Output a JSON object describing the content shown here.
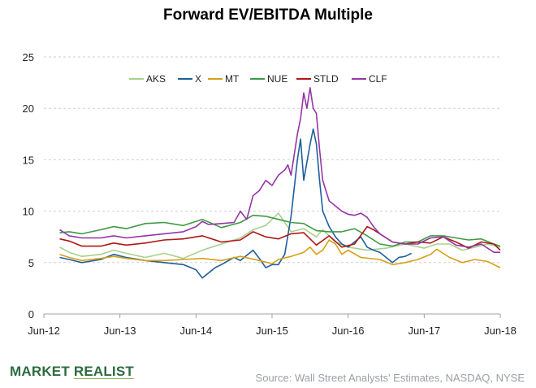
{
  "chart_data": {
    "type": "line",
    "title": "Forward EV/EBITDA Multiple",
    "xlabel": "",
    "ylabel": "",
    "ylim": [
      0,
      25
    ],
    "y_ticks": [
      "0",
      "5",
      "10",
      "15",
      "20",
      "25"
    ],
    "x_ticks": [
      "Jun-12",
      "Jun-13",
      "Jun-14",
      "Jun-15",
      "Jun-16",
      "Jun-17",
      "Jun-18"
    ],
    "grid": "horizontal dashed",
    "legend_position": "top",
    "x_unit": "months since Jun-12",
    "series": [
      {
        "name": "AKS",
        "color": "#a8d08d",
        "points": [
          [
            2.5,
            6.5
          ],
          [
            4,
            6
          ],
          [
            6,
            5.6
          ],
          [
            9,
            5.8
          ],
          [
            11,
            6.2
          ],
          [
            13,
            5.9
          ],
          [
            16,
            5.5
          ],
          [
            19,
            5.9
          ],
          [
            22,
            5.4
          ],
          [
            25,
            6.2
          ],
          [
            28,
            6.8
          ],
          [
            31,
            7.4
          ],
          [
            33,
            8.2
          ],
          [
            35,
            8.6
          ],
          [
            37,
            9.8
          ],
          [
            39,
            8.0
          ],
          [
            41,
            8.3
          ],
          [
            43,
            7.5
          ],
          [
            44,
            8.2
          ],
          [
            46,
            7.0
          ],
          [
            48,
            6.5
          ],
          [
            51,
            6.2
          ],
          [
            54,
            6.4
          ],
          [
            57,
            6.8
          ],
          [
            60,
            6.4
          ],
          [
            62,
            6.8
          ],
          [
            64,
            6.8
          ],
          [
            66,
            6.2
          ],
          [
            68,
            6.5
          ],
          [
            70,
            6.8
          ],
          [
            72,
            6.5
          ]
        ]
      },
      {
        "name": "X",
        "color": "#1f5f9b",
        "points": [
          [
            2.5,
            5.5
          ],
          [
            4,
            5.3
          ],
          [
            6,
            5.0
          ],
          [
            9,
            5.3
          ],
          [
            11,
            5.8
          ],
          [
            13,
            5.5
          ],
          [
            16,
            5.2
          ],
          [
            19,
            5.0
          ],
          [
            22,
            4.8
          ],
          [
            24,
            4.3
          ],
          [
            25,
            3.5
          ],
          [
            27,
            4.5
          ],
          [
            28,
            4.8
          ],
          [
            30,
            5.5
          ],
          [
            31,
            5.2
          ],
          [
            33,
            6.2
          ],
          [
            34,
            5.4
          ],
          [
            35,
            4.5
          ],
          [
            36,
            4.8
          ],
          [
            37,
            4.8
          ],
          [
            38,
            5.8
          ],
          [
            39,
            9.5
          ],
          [
            40,
            15.0
          ],
          [
            40.5,
            17.0
          ],
          [
            41,
            13.0
          ],
          [
            42,
            16.5
          ],
          [
            42.5,
            18.0
          ],
          [
            43,
            16.5
          ],
          [
            43.5,
            13.0
          ],
          [
            44,
            10.0
          ],
          [
            45,
            8.5
          ],
          [
            46,
            7.5
          ],
          [
            47,
            6.8
          ],
          [
            48,
            6.5
          ],
          [
            49,
            7.0
          ],
          [
            50,
            7.5
          ],
          [
            51,
            6.5
          ],
          [
            52,
            6.2
          ],
          [
            53,
            6.0
          ],
          [
            54,
            5.5
          ],
          [
            55,
            5.0
          ],
          [
            56,
            5.5
          ],
          [
            57,
            5.6
          ],
          [
            58,
            5.9
          ]
        ]
      },
      {
        "name": "MT",
        "color": "#d4a017",
        "points": [
          [
            2.5,
            5.8
          ],
          [
            4,
            5.5
          ],
          [
            6,
            5.2
          ],
          [
            9,
            5.4
          ],
          [
            11,
            5.6
          ],
          [
            13,
            5.4
          ],
          [
            16,
            5.2
          ],
          [
            19,
            5.2
          ],
          [
            22,
            5.3
          ],
          [
            25,
            5.4
          ],
          [
            28,
            5.2
          ],
          [
            31,
            5.6
          ],
          [
            34,
            5.2
          ],
          [
            36,
            4.9
          ],
          [
            37,
            5.3
          ],
          [
            39,
            5.6
          ],
          [
            41,
            6.0
          ],
          [
            42,
            6.5
          ],
          [
            43,
            5.8
          ],
          [
            44,
            6.2
          ],
          [
            45,
            7.2
          ],
          [
            46,
            6.8
          ],
          [
            47,
            5.8
          ],
          [
            48,
            6.2
          ],
          [
            50,
            5.5
          ],
          [
            53,
            5.3
          ],
          [
            55,
            4.8
          ],
          [
            57,
            5.0
          ],
          [
            59,
            5.3
          ],
          [
            61,
            5.8
          ],
          [
            62,
            6.3
          ],
          [
            64,
            5.5
          ],
          [
            66,
            5.0
          ],
          [
            68,
            5.3
          ],
          [
            70,
            5.1
          ],
          [
            71,
            4.8
          ],
          [
            72,
            4.5
          ]
        ]
      },
      {
        "name": "NUE",
        "color": "#3f9a45",
        "points": [
          [
            2.5,
            7.9
          ],
          [
            4,
            8.0
          ],
          [
            6,
            7.8
          ],
          [
            9,
            8.2
          ],
          [
            11,
            8.5
          ],
          [
            13,
            8.3
          ],
          [
            16,
            8.8
          ],
          [
            19,
            8.9
          ],
          [
            22,
            8.6
          ],
          [
            25,
            9.2
          ],
          [
            28,
            8.4
          ],
          [
            31,
            8.9
          ],
          [
            33,
            9.6
          ],
          [
            35,
            9.5
          ],
          [
            37,
            9.2
          ],
          [
            39,
            8.9
          ],
          [
            41,
            8.8
          ],
          [
            43,
            8.1
          ],
          [
            45,
            8.0
          ],
          [
            47,
            8.0
          ],
          [
            49,
            8.3
          ],
          [
            51,
            7.6
          ],
          [
            53,
            6.8
          ],
          [
            55,
            6.6
          ],
          [
            57,
            7.0
          ],
          [
            59,
            7.0
          ],
          [
            61,
            7.6
          ],
          [
            63,
            7.6
          ],
          [
            65,
            7.4
          ],
          [
            67,
            7.2
          ],
          [
            69,
            7.3
          ],
          [
            71,
            6.8
          ],
          [
            72,
            6.6
          ]
        ]
      },
      {
        "name": "STLD",
        "color": "#b01717",
        "points": [
          [
            2.5,
            7.3
          ],
          [
            4,
            7.1
          ],
          [
            6,
            6.6
          ],
          [
            9,
            6.6
          ],
          [
            11,
            6.9
          ],
          [
            13,
            6.7
          ],
          [
            16,
            6.9
          ],
          [
            19,
            7.2
          ],
          [
            22,
            7.3
          ],
          [
            25,
            7.6
          ],
          [
            28,
            7.0
          ],
          [
            31,
            7.2
          ],
          [
            33,
            8.0
          ],
          [
            35,
            7.5
          ],
          [
            37,
            7.3
          ],
          [
            39,
            7.8
          ],
          [
            41,
            7.9
          ],
          [
            43,
            6.7
          ],
          [
            45,
            7.6
          ],
          [
            47,
            6.5
          ],
          [
            49,
            6.8
          ],
          [
            51,
            8.5
          ],
          [
            52,
            8.2
          ],
          [
            53,
            7.8
          ],
          [
            55,
            7.0
          ],
          [
            57,
            6.8
          ],
          [
            59,
            7.0
          ],
          [
            61,
            6.9
          ],
          [
            63,
            7.5
          ],
          [
            65,
            7.0
          ],
          [
            67,
            6.4
          ],
          [
            69,
            7.0
          ],
          [
            71,
            6.8
          ],
          [
            72,
            6.2
          ]
        ]
      },
      {
        "name": "CLF",
        "color": "#9437a5",
        "points": [
          [
            2.5,
            8.2
          ],
          [
            4,
            7.6
          ],
          [
            6,
            7.4
          ],
          [
            9,
            7.4
          ],
          [
            11,
            7.6
          ],
          [
            13,
            7.4
          ],
          [
            16,
            7.6
          ],
          [
            19,
            7.8
          ],
          [
            22,
            8.0
          ],
          [
            24,
            8.5
          ],
          [
            25,
            9.0
          ],
          [
            26,
            8.7
          ],
          [
            28,
            8.8
          ],
          [
            30,
            8.9
          ],
          [
            31,
            10.0
          ],
          [
            32,
            9.2
          ],
          [
            33,
            11.5
          ],
          [
            34,
            12.0
          ],
          [
            35,
            13.0
          ],
          [
            36,
            12.5
          ],
          [
            37,
            13.5
          ],
          [
            38,
            14.0
          ],
          [
            38.5,
            14.5
          ],
          [
            39,
            13.5
          ],
          [
            40,
            17.5
          ],
          [
            40.5,
            19.0
          ],
          [
            41,
            21.5
          ],
          [
            41.5,
            20.0
          ],
          [
            42,
            22.0
          ],
          [
            42.5,
            20.0
          ],
          [
            43,
            19.5
          ],
          [
            43.5,
            16.0
          ],
          [
            44,
            13.0
          ],
          [
            45,
            11.0
          ],
          [
            46,
            10.5
          ],
          [
            47,
            10.0
          ],
          [
            48,
            9.7
          ],
          [
            49,
            9.6
          ],
          [
            50,
            9.8
          ],
          [
            51,
            9.4
          ],
          [
            52,
            8.5
          ],
          [
            53,
            7.8
          ],
          [
            55,
            7.0
          ],
          [
            57,
            6.8
          ],
          [
            59,
            6.8
          ],
          [
            61,
            7.4
          ],
          [
            63,
            7.5
          ],
          [
            65,
            6.7
          ],
          [
            67,
            6.5
          ],
          [
            69,
            6.8
          ],
          [
            71,
            6.0
          ],
          [
            72,
            6.0
          ]
        ]
      }
    ]
  },
  "brand": {
    "part1": "MARKET ",
    "part2": "REALIST"
  },
  "source": "Source: Wall Street Analysts' Estimates, NASDAQ, NYSE"
}
